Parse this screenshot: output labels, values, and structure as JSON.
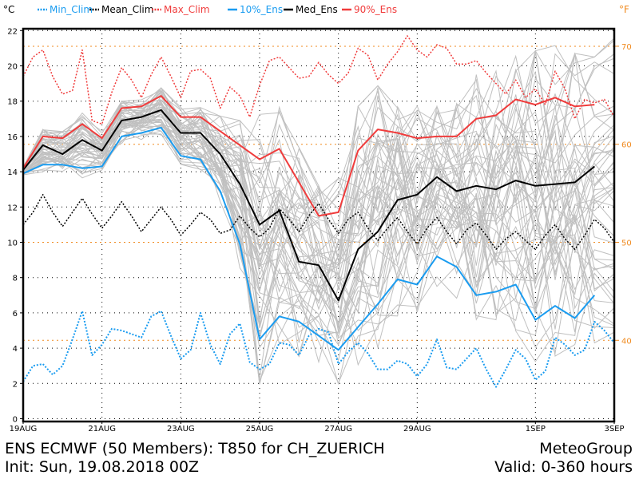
{
  "chart_data": {
    "type": "line",
    "title": "ENS ECMWF (50 Members): T850 for CH_ZUERICH",
    "init_text": "Init: Sun, 19.08.2018 00Z",
    "brand": "MeteoGroup",
    "valid_text": "Valid: 0-360 hours",
    "left_unit": "°C",
    "right_unit": "°F",
    "ylim": [
      0,
      22
    ],
    "xlim_days": [
      0,
      15
    ],
    "grid": true,
    "legend_placement": "top",
    "y_ticks": [
      0,
      2,
      4,
      6,
      8,
      10,
      12,
      14,
      16,
      18,
      20,
      22
    ],
    "y_ticks_f": [
      40,
      50,
      60,
      70
    ],
    "x_ticks": [
      {
        "day": 0,
        "label": "19AUG"
      },
      {
        "day": 2,
        "label": "21AUG"
      },
      {
        "day": 4,
        "label": "23AUG"
      },
      {
        "day": 6,
        "label": "25AUG"
      },
      {
        "day": 8,
        "label": "27AUG"
      },
      {
        "day": 10,
        "label": "29AUG"
      },
      {
        "day": 13,
        "label": "1SEP"
      },
      {
        "day": 15,
        "label": "3SEP"
      }
    ],
    "colors": {
      "blue": "#1a9cf0",
      "black": "#000000",
      "red": "#f03c3c",
      "orange": "#f08a1e",
      "member": "#c0c0c0"
    },
    "legend": [
      {
        "label": "Min_Clim",
        "color": "#1a9cf0",
        "dashed": true
      },
      {
        "label": "Mean_Clim",
        "color": "#000000",
        "dashed": true
      },
      {
        "label": "Max_Clim",
        "color": "#f03c3c",
        "dashed": true
      },
      {
        "label": "10%_Ens",
        "color": "#1a9cf0",
        "dashed": false
      },
      {
        "label": "Med_Ens",
        "color": "#000000",
        "dashed": false
      },
      {
        "label": "90%_Ens",
        "color": "#f03c3c",
        "dashed": false
      }
    ],
    "ens_step_days": 0.5,
    "clim_step_days": 0.25,
    "members_count": 50,
    "series": {
      "med_ens": [
        14.1,
        15.5,
        15.0,
        15.8,
        15.2,
        16.9,
        17.1,
        17.5,
        16.2,
        16.2,
        15.0,
        13.3,
        11.0,
        11.8,
        8.9,
        8.7,
        6.7,
        9.6,
        10.6,
        12.4,
        12.7,
        13.7,
        12.9,
        13.2,
        13.0,
        13.5,
        13.2,
        13.3,
        13.4,
        14.3
      ],
      "p10_ens": [
        13.9,
        14.4,
        14.4,
        14.2,
        14.3,
        16.0,
        16.2,
        16.5,
        14.9,
        14.7,
        12.9,
        9.9,
        4.5,
        5.8,
        5.5,
        4.7,
        3.9,
        5.2,
        6.5,
        7.9,
        7.6,
        9.2,
        8.6,
        7.0,
        7.2,
        7.6,
        5.6,
        6.4,
        5.7,
        7.0
      ],
      "p90_ens": [
        14.2,
        16.0,
        15.9,
        16.7,
        15.9,
        17.6,
        17.7,
        18.3,
        17.1,
        17.1,
        16.3,
        15.5,
        14.7,
        15.3,
        13.4,
        11.5,
        11.7,
        15.2,
        16.4,
        16.2,
        15.9,
        16.0,
        16.0,
        17.0,
        17.2,
        18.1,
        17.8,
        18.2,
        17.7,
        17.8
      ],
      "max_clim": [
        19.4,
        20.5,
        20.9,
        19.4,
        18.4,
        18.6,
        20.9,
        16.9,
        16.7,
        18.5,
        19.9,
        19.2,
        18.2,
        19.5,
        20.5,
        19.4,
        18.2,
        19.7,
        19.8,
        19.3,
        17.6,
        18.8,
        18.3,
        17.1,
        18.9,
        20.3,
        20.5,
        19.9,
        19.3,
        19.4,
        20.2,
        19.5,
        19.0,
        19.6,
        21.0,
        20.6,
        19.2,
        20.1,
        20.8,
        21.7,
        20.9,
        20.5,
        21.2,
        21.0,
        20.1,
        20.1,
        20.3,
        19.6,
        19.0,
        18.4,
        19.2,
        18.2,
        18.7,
        17.8,
        19.7,
        18.7,
        17.0,
        18.1,
        17.9,
        18.1,
        17.1
      ],
      "mean_clim": [
        11.0,
        11.7,
        12.7,
        11.7,
        10.9,
        11.7,
        12.5,
        11.6,
        10.8,
        11.5,
        12.3,
        11.5,
        10.6,
        11.3,
        12.0,
        11.3,
        10.4,
        11.0,
        11.7,
        11.3,
        10.5,
        10.7,
        11.5,
        10.8,
        10.3,
        10.8,
        11.9,
        11.3,
        10.6,
        11.5,
        12.2,
        11.3,
        10.5,
        11.3,
        11.7,
        10.8,
        10.1,
        10.8,
        11.4,
        10.6,
        9.9,
        10.8,
        11.4,
        10.6,
        9.9,
        10.7,
        11.1,
        10.4,
        9.6,
        10.2,
        10.6,
        10.1,
        9.6,
        10.4,
        11.0,
        10.2,
        9.6,
        10.4,
        11.3,
        10.8,
        10.0
      ],
      "min_clim": [
        2.1,
        3.0,
        3.1,
        2.5,
        3.0,
        4.5,
        6.1,
        3.6,
        4.2,
        5.1,
        5.0,
        4.8,
        4.6,
        5.8,
        6.1,
        4.7,
        3.4,
        3.9,
        6.0,
        4.2,
        3.1,
        4.8,
        5.4,
        3.2,
        2.8,
        3.1,
        4.3,
        4.2,
        3.6,
        4.7,
        5.1,
        4.9,
        3.1,
        3.8,
        4.3,
        3.7,
        2.8,
        2.8,
        3.3,
        3.1,
        2.4,
        3.1,
        4.5,
        2.9,
        2.8,
        3.4,
        4.0,
        2.8,
        1.8,
        2.8,
        3.9,
        3.4,
        2.2,
        2.7,
        4.6,
        4.2,
        3.6,
        3.9,
        5.5,
        5.0,
        4.3
      ]
    }
  }
}
